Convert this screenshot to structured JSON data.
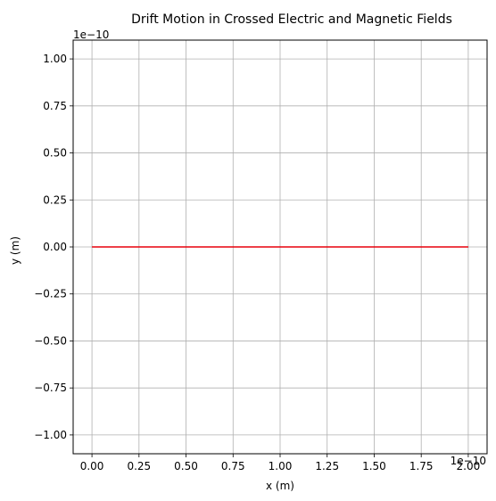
{
  "chart_data": {
    "type": "line",
    "title": "Drift Motion in Crossed Electric and Magnetic Fields",
    "xlabel": "x (m)",
    "ylabel": "y (m)",
    "x_offset_text": "1e−10",
    "y_offset_text": "1e−10",
    "xlim": [
      -1e-11,
      2.1e-10
    ],
    "ylim": [
      -1.1e-10,
      1.1e-10
    ],
    "x_ticks": [
      0,
      2.5e-11,
      5e-11,
      7.5e-11,
      1e-10,
      1.25e-10,
      1.5e-10,
      1.75e-10,
      2e-10
    ],
    "x_tick_labels": [
      "0.00",
      "0.25",
      "0.50",
      "0.75",
      "1.00",
      "1.25",
      "1.50",
      "1.75",
      "2.00"
    ],
    "y_ticks": [
      1e-10,
      7.5e-11,
      5e-11,
      2.5e-11,
      0,
      -2.5e-11,
      -5e-11,
      -7.5e-11,
      -1e-10
    ],
    "y_tick_labels": [
      "1.00",
      "0.75",
      "0.50",
      "0.25",
      "0.00",
      "−0.25",
      "−0.50",
      "−0.75",
      "−1.00"
    ],
    "grid": true,
    "series": [
      {
        "color": "#e8000b",
        "x": [
          0,
          2e-10
        ],
        "y": [
          0,
          0
        ]
      }
    ]
  }
}
